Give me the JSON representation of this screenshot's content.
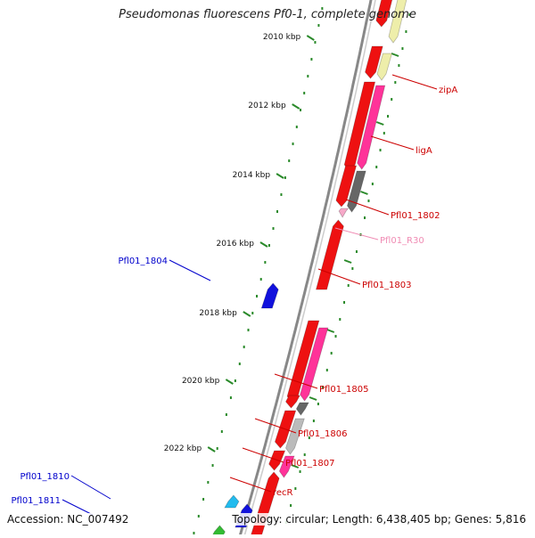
{
  "title": "Pseudomonas fluorescens Pf0-1, complete genome",
  "accession": "Accession: NC_007492",
  "topology": "Topology: circular; Length: 6,438,405 bp; Genes: 5,816",
  "ticks": [
    {
      "label": "2010 kbp"
    },
    {
      "label": "2012 kbp"
    },
    {
      "label": "2014 kbp"
    },
    {
      "label": "2016 kbp"
    },
    {
      "label": "2018 kbp"
    },
    {
      "label": "2020 kbp"
    },
    {
      "label": "2022 kbp"
    }
  ],
  "gene_labels": [
    {
      "text": "zipA",
      "color": "#cc0000"
    },
    {
      "text": "ligA",
      "color": "#cc0000"
    },
    {
      "text": "Pfl01_1802",
      "color": "#cc0000"
    },
    {
      "text": "Pfl01_R30",
      "color": "#f08cb4"
    },
    {
      "text": "Pfl01_1803",
      "color": "#cc0000"
    },
    {
      "text": "Pfl01_1804",
      "color": "#0000cc"
    },
    {
      "text": "Pfl01_1805",
      "color": "#cc0000"
    },
    {
      "text": "Pfl01_1806",
      "color": "#cc0000"
    },
    {
      "text": "Pfl01_1807",
      "color": "#cc0000"
    },
    {
      "text": "recR",
      "color": "#cc0000"
    },
    {
      "text": "Pfl01_1810",
      "color": "#0000cc"
    },
    {
      "text": "Pfl01_1811",
      "color": "#0000cc"
    }
  ],
  "colors": {
    "backbone": "#888888",
    "tick_mark": "#2a8a2a",
    "gene_red": "#ee1111",
    "gene_pink": "#ff3399",
    "gene_gray": "#666666",
    "gene_lightgray": "#bbbbbb",
    "gene_yellow": "#eeeeaa",
    "gene_blue": "#1111dd",
    "gene_cyan": "#22bbee",
    "gene_green": "#33bb33"
  }
}
